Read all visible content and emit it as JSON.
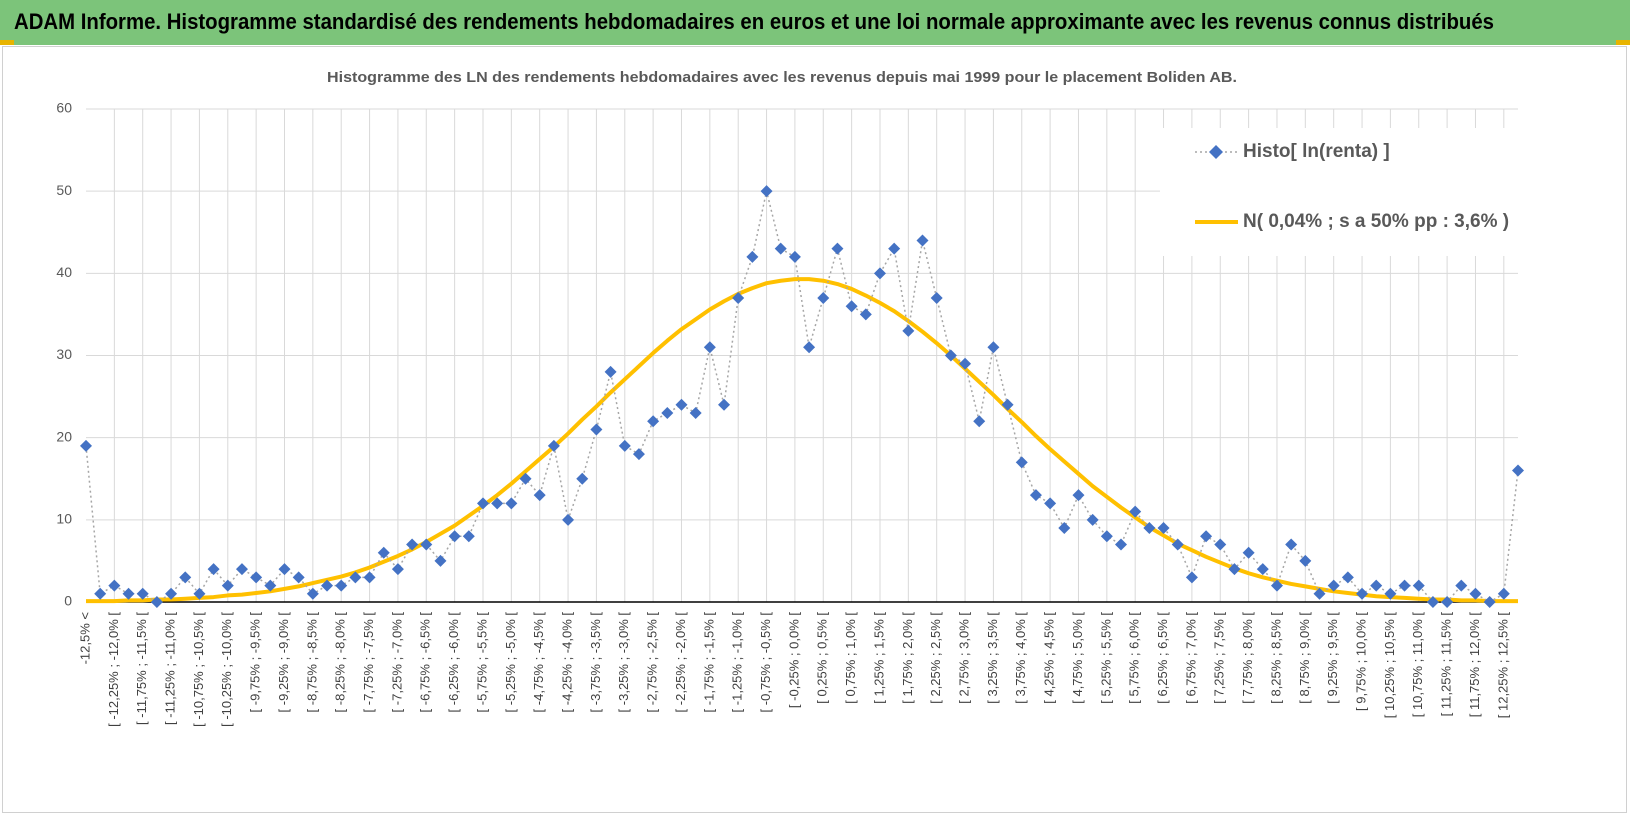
{
  "header": {
    "title": "ADAM Informe. Histogramme standardisé des rendements hebdomadaires en euros et une loi normale approximante avec les revenus connus distribués"
  },
  "chart_data": {
    "type": "line",
    "title": "Histogramme  des LN des rendements hebdomadaires avec les revenus depuis mai 1999 pour le placement Boliden AB.",
    "categories": [
      "-12,5% <",
      null,
      "[ -12,25% ; -12,0% [",
      null,
      "[ -11,75% ; -11,5% [",
      null,
      "[ -11,25% ; -11,0% [",
      null,
      "[ -10,75% ; -10,5% [",
      null,
      "[ -10,25% ; -10,0% [",
      null,
      "[ -9,75% ; -9,5% [",
      null,
      "[ -9,25% ; -9,0% [",
      null,
      "[ -8,75% ; -8,5% [",
      null,
      "[ -8,25% ; -8,0% [",
      null,
      "[ -7,75% ; -7,5% [",
      null,
      "[ -7,25% ; -7,0% [",
      null,
      "[ -6,75% ; -6,5% [",
      null,
      "[ -6,25% ; -6,0% [",
      null,
      "[ -5,75% ; -5,5% [",
      null,
      "[ -5,25% ; -5,0% [",
      null,
      "[ -4,75% ; -4,5% [",
      null,
      "[ -4,25% ; -4,0% [",
      null,
      "[ -3,75% ; -3,5% [",
      null,
      "[ -3,25% ; -3,0% [",
      null,
      "[ -2,75% ; -2,5% [",
      null,
      "[ -2,25% ; -2,0% [",
      null,
      "[ -1,75% ; -1,5% [",
      null,
      "[ -1,25% ; -1,0% [",
      null,
      "[ -0,75% ; -0,5% [",
      null,
      "[ -0,25% ; 0,0% [",
      null,
      "[ 0,25% ; 0,5% [",
      null,
      "[ 0,75% ; 1,0% [",
      null,
      "[ 1,25% ; 1,5% [",
      null,
      "[ 1,75% ; 2,0% [",
      null,
      "[ 2,25% ; 2,5% [",
      null,
      "[ 2,75% ; 3,0% [",
      null,
      "[ 3,25% ; 3,5% [",
      null,
      "[ 3,75% ; 4,0% [",
      null,
      "[ 4,25% ; 4,5% [",
      null,
      "[ 4,75% ; 5,0% [",
      null,
      "[ 5,25% ; 5,5% [",
      null,
      "[ 5,75% ; 6,0% [",
      null,
      "[ 6,25% ; 6,5% [",
      null,
      "[ 6,75% ; 7,0% [",
      null,
      "[ 7,25% ; 7,5% [",
      null,
      "[ 7,75% ; 8,0% [",
      null,
      "[ 8,25% ; 8,5% [",
      null,
      "[ 8,75% ; 9,0% [",
      null,
      "[ 9,25% ; 9,5% [",
      null,
      "[ 9,75% ; 10,0% [",
      null,
      "[ 10,25% ; 10,5% [",
      null,
      "[ 10,75% ; 11,0% [",
      null,
      "[ 11,25% ; 11,5% [",
      null,
      "[ 11,75% ; 12,0% [",
      null,
      "[ 12,25% ; 12,5% [",
      null
    ],
    "series": [
      {
        "name": "Histo[ ln(renta) ]",
        "color": "#4472c4",
        "line_color": "#a6a6a6",
        "line_style": "dotted",
        "marker": "diamond",
        "values": [
          19,
          1,
          2,
          1,
          1,
          0,
          1,
          3,
          1,
          4,
          2,
          4,
          3,
          2,
          4,
          3,
          1,
          2,
          2,
          3,
          3,
          6,
          4,
          7,
          7,
          5,
          8,
          8,
          12,
          12,
          12,
          15,
          13,
          19,
          10,
          15,
          21,
          28,
          19,
          18,
          22,
          23,
          24,
          23,
          31,
          24,
          37,
          42,
          50,
          43,
          42,
          31,
          37,
          43,
          36,
          35,
          40,
          43,
          33,
          44,
          37,
          30,
          29,
          22,
          31,
          24,
          17,
          13,
          12,
          9,
          13,
          10,
          8,
          7,
          11,
          9,
          9,
          7,
          3,
          8,
          7,
          4,
          6,
          4,
          2,
          7,
          5,
          1,
          2,
          3,
          1,
          2,
          1,
          2,
          2,
          0,
          0,
          2,
          1,
          0,
          1,
          16
        ]
      },
      {
        "name": "N( 0,04% ; s a 50% pp : 3,6% )",
        "color": "#ffc000",
        "line_color": "#ffc000",
        "line_style": "solid",
        "marker": "none",
        "values": [
          0.1,
          0.1,
          0.1,
          0.2,
          0.2,
          0.3,
          0.3,
          0.4,
          0.5,
          0.6,
          0.8,
          0.9,
          1.1,
          1.3,
          1.6,
          1.9,
          2.3,
          2.7,
          3.1,
          3.6,
          4.2,
          4.9,
          5.6,
          6.4,
          7.3,
          8.3,
          9.3,
          10.5,
          11.7,
          13.0,
          14.4,
          15.9,
          17.4,
          18.9,
          20.5,
          22.2,
          23.8,
          25.5,
          27.1,
          28.7,
          30.3,
          31.8,
          33.2,
          34.4,
          35.6,
          36.6,
          37.5,
          38.2,
          38.8,
          39.1,
          39.3,
          39.3,
          39.1,
          38.7,
          38.1,
          37.3,
          36.4,
          35.4,
          34.2,
          32.9,
          31.5,
          30.0,
          28.4,
          26.8,
          25.2,
          23.5,
          21.9,
          20.2,
          18.6,
          17.1,
          15.6,
          14.1,
          12.8,
          11.5,
          10.3,
          9.1,
          8.1,
          7.1,
          6.3,
          5.5,
          4.8,
          4.1,
          3.5,
          3.0,
          2.6,
          2.2,
          1.9,
          1.6,
          1.3,
          1.1,
          0.9,
          0.7,
          0.6,
          0.5,
          0.4,
          0.3,
          0.3,
          0.2,
          0.2,
          0.1,
          0.1,
          0.1
        ]
      }
    ],
    "ylim": [
      0,
      60
    ],
    "yticks": [
      0,
      10,
      20,
      30,
      40,
      50,
      60
    ],
    "grid": true,
    "legend": "top-right"
  }
}
